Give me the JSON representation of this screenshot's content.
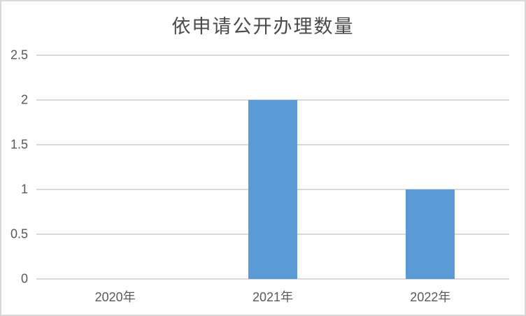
{
  "chart_data": {
    "type": "bar",
    "title": "依申请公开办理数量",
    "categories": [
      "2020年",
      "2021年",
      "2022年"
    ],
    "values": [
      0,
      2,
      1
    ],
    "xlabel": "",
    "ylabel": "",
    "ylim": [
      0,
      2.5
    ],
    "yticks": [
      0,
      0.5,
      1,
      1.5,
      2,
      2.5
    ],
    "grid": true,
    "legend": false,
    "bar_color": "#5b9bd5",
    "gridline_color": "#d9d9d9",
    "axis_text_color": "#595959",
    "title_color": "#4a4a4a",
    "frame_border_color": "#d9d9d9",
    "background_color": "#ffffff"
  }
}
